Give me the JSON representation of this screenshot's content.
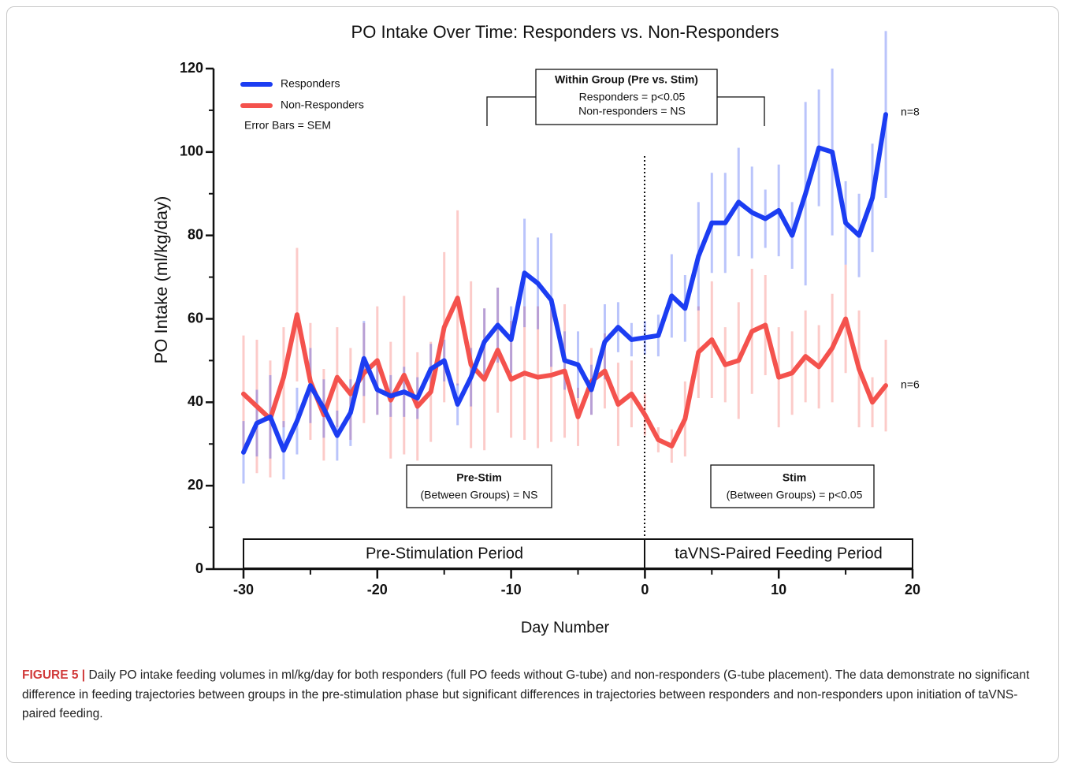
{
  "chart_data": {
    "type": "line",
    "title": "PO Intake Over Time: Responders vs. Non-Responders",
    "xlabel": "Day Number",
    "ylabel": "PO Intake (ml/kg/day)",
    "x": [
      -30,
      -29,
      -28,
      -27,
      -26,
      -25,
      -24,
      -23,
      -22,
      -21,
      -20,
      -19,
      -18,
      -17,
      -16,
      -15,
      -14,
      -13,
      -12,
      -11,
      -10,
      -9,
      -8,
      -7,
      -6,
      -5,
      -4,
      -3,
      -2,
      -1,
      0,
      1,
      2,
      3,
      4,
      5,
      6,
      7,
      8,
      9,
      10,
      11,
      12,
      13,
      14,
      15,
      16,
      17,
      18
    ],
    "series": [
      {
        "name": "Responders",
        "color": "#1c3df2",
        "end_label": "n=8",
        "values": [
          28,
          35,
          36.5,
          28.5,
          35.5,
          44,
          38.5,
          32,
          37.5,
          50.5,
          43,
          41.5,
          42.5,
          41,
          48,
          50,
          39.5,
          46,
          54.5,
          58.5,
          55,
          71,
          68.5,
          64.5,
          50,
          49,
          43,
          54.5,
          58,
          55,
          55.5,
          56,
          65.5,
          62.5,
          75,
          83,
          83,
          88,
          85.5,
          84,
          86,
          80,
          90,
          101,
          100,
          83,
          80,
          89,
          109
        ],
        "errors": [
          7.5,
          8,
          10,
          7,
          8,
          9,
          7,
          6,
          8,
          9,
          6,
          5,
          6,
          5,
          6,
          5,
          5,
          7,
          8,
          9,
          8,
          13,
          11,
          16,
          7,
          8,
          6,
          9,
          6,
          4,
          4,
          5,
          10,
          8,
          13,
          12,
          12,
          13,
          11,
          7,
          11,
          8,
          22,
          14,
          20,
          10,
          10,
          13,
          20
        ]
      },
      {
        "name": "Non-Responders",
        "color": "#f4524d",
        "end_label": "n=6",
        "values": [
          42,
          39,
          36,
          46,
          61,
          45,
          37,
          46,
          42,
          47,
          50,
          40.5,
          46.5,
          39,
          42.5,
          58,
          65,
          49,
          45.5,
          52.5,
          45.5,
          47,
          46,
          46.5,
          47.5,
          36.5,
          45,
          47.5,
          39.5,
          42,
          37,
          31,
          29.5,
          36,
          52,
          55,
          49,
          50,
          57,
          58.5,
          46,
          47,
          51,
          48.5,
          53,
          60,
          48,
          40,
          44
        ],
        "errors": [
          14,
          16,
          14,
          12,
          16,
          14,
          11,
          12,
          11,
          12,
          13,
          14,
          19,
          13,
          12,
          18,
          21,
          20,
          17,
          15,
          14,
          16,
          17,
          16,
          16,
          7,
          8,
          9,
          10,
          8,
          5,
          3,
          4,
          9,
          11,
          14,
          9,
          14,
          15,
          12,
          12,
          10,
          11,
          10,
          13,
          13,
          14,
          6,
          11
        ]
      }
    ],
    "xlim": [
      -30,
      20
    ],
    "xticks": [
      -30,
      -20,
      -10,
      0,
      10,
      20
    ],
    "ylim": [
      0,
      120
    ],
    "yticks": [
      0,
      20,
      40,
      60,
      80,
      100,
      120
    ],
    "legend": "upper left",
    "annotations": {
      "error_note": "Error  Bars =  SEM",
      "within_title": "Within Group (Pre vs. Stim)",
      "within_line1": "Responders = p<0.05",
      "within_line2": "Non-responders = NS",
      "pre_title": "Pre-Stim",
      "pre_line": "(Between Groups) = NS",
      "stim_title": "Stim",
      "stim_line": "(Between Groups) = p<0.05",
      "period_pre": "Pre-Stimulation Period",
      "period_stim": "taVNS-Paired Feeding Period"
    }
  },
  "caption": {
    "label": "FIGURE 5 |",
    "text": "Daily PO intake feeding volumes in ml/kg/day for both responders (full PO feeds without G-tube) and non-responders (G-tube placement). The data demonstrate no significant difference in feeding trajectories between groups in the pre-stimulation phase but significant differences in trajectories between responders and non-responders upon initiation of taVNS-paired feeding."
  }
}
